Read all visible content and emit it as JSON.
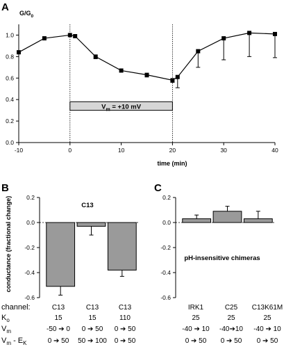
{
  "panels": {
    "A": {
      "letter": "A",
      "ylabel": "G/G",
      "ylabel_sub": "0",
      "xlabel": "time (min)",
      "box_label": "V",
      "box_label_sub": "m",
      "box_label_rest": " = +10 mV"
    },
    "B": {
      "letter": "B",
      "annotation": "C13",
      "ylabel": "conductance (fractional change)"
    },
    "C": {
      "letter": "C",
      "annotation": "pH-insensitive chimeras"
    }
  },
  "chart_data": [
    {
      "id": "A",
      "type": "line",
      "title": "",
      "xlabel": "time (min)",
      "ylabel": "G/G0",
      "xlim": [
        -10,
        40
      ],
      "ylim": [
        0.0,
        1.1
      ],
      "xticks": [
        "-10",
        "0",
        "10",
        "20",
        "30",
        "40"
      ],
      "yticks": [
        "0.0",
        "0.2",
        "0.4",
        "0.6",
        "0.8",
        "1.0"
      ],
      "x": [
        -10,
        -5,
        0,
        1,
        5,
        10,
        15,
        20,
        21,
        25,
        30,
        35,
        40
      ],
      "y": [
        0.84,
        0.97,
        1.0,
        0.99,
        0.8,
        0.67,
        0.63,
        0.58,
        0.61,
        0.85,
        0.97,
        1.02,
        1.01
      ],
      "yerr_low": [
        0,
        0,
        0,
        0,
        0.02,
        0,
        0.02,
        0.02,
        0.1,
        0.15,
        0.2,
        0.22,
        0.22
      ],
      "vlines_x": [
        0,
        20
      ],
      "stimulus": {
        "start": 0,
        "end": 20,
        "label": "Vm = +10 mV"
      },
      "grid": false
    },
    {
      "id": "B",
      "type": "bar",
      "ylabel": "conductance (fractional change)",
      "ylim": [
        -0.6,
        0.2
      ],
      "yticks": [
        "0.2",
        "0.0",
        "-0.2",
        "-0.4",
        "-0.6"
      ],
      "categories": [
        "C13",
        "C13",
        "C13"
      ],
      "values": [
        -0.51,
        -0.03,
        -0.38
      ],
      "errors": [
        0.07,
        0.07,
        0.05
      ]
    },
    {
      "id": "C",
      "type": "bar",
      "ylim": [
        -0.6,
        0.2
      ],
      "yticks": [
        "0.2",
        "0.0",
        "-0.2",
        "-0.4",
        "-0.6"
      ],
      "categories": [
        "IRK1",
        "C25",
        "C13K61M"
      ],
      "values": [
        0.03,
        0.09,
        0.03
      ],
      "errors": [
        0.03,
        0.04,
        0.06
      ]
    }
  ],
  "table": {
    "row_labels": [
      "channel:",
      "K",
      "V",
      "V"
    ],
    "row_label_subs": [
      "",
      "o",
      "m",
      "m"
    ],
    "row_label_tails": [
      "",
      "",
      "",
      " - E"
    ],
    "row_label_tail_subs": [
      "",
      "",
      "",
      "K"
    ],
    "B_cols": [
      [
        "C13",
        "15",
        "-50 ➔ 0",
        "0 ➔ 50"
      ],
      [
        "C13",
        "15",
        "0 ➔ 50",
        "50 ➔ 100"
      ],
      [
        "C13",
        "110",
        "0 ➔ 50",
        "0 ➔ 50"
      ]
    ],
    "C_cols": [
      [
        "IRK1",
        "25",
        "-40 ➔ 10",
        "0 ➔ 50"
      ],
      [
        "C25",
        "25",
        "-40➔10",
        "0 ➔ 50"
      ],
      [
        "C13K61M",
        "25",
        "-40 ➔ 10",
        "0 ➔ 50"
      ]
    ]
  }
}
